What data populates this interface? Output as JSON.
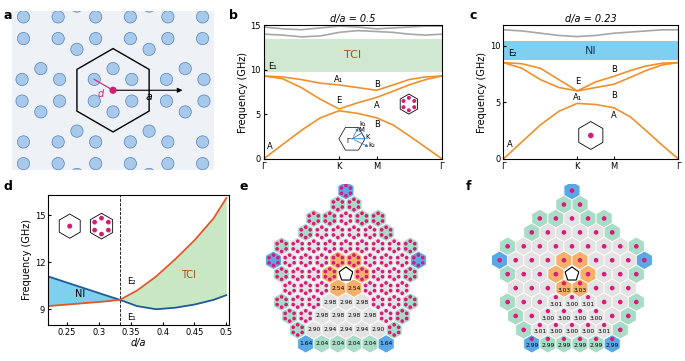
{
  "chart_data": [
    {
      "type": "line",
      "panel": "b",
      "title": "d/a = 0.5",
      "ylabel": "Frequency (GHz)",
      "xlim": [
        0,
        2.366
      ],
      "xticks": [
        {
          "value": 0,
          "label": "Γ"
        },
        {
          "value": 1,
          "label": "K"
        },
        {
          "value": 1.5,
          "label": "M"
        },
        {
          "value": 2.366,
          "label": "Γ"
        }
      ],
      "ylim": [
        0,
        15
      ],
      "yticks": [
        0,
        5,
        10,
        15
      ],
      "x": [
        0,
        0.25,
        0.5,
        0.75,
        1,
        1.25,
        1.5,
        1.72,
        1.93,
        2.15,
        2.366
      ],
      "series": [
        {
          "color": "#f0902a",
          "values": [
            0,
            1.6,
            3.2,
            4.6,
            5.4,
            5.1,
            4.6,
            3.8,
            2.6,
            1.3,
            0
          ]
        },
        {
          "color": "#f0902a",
          "values": [
            9.3,
            9.0,
            8.0,
            6.7,
            5.6,
            6.3,
            6.9,
            7.6,
            8.3,
            8.9,
            9.3
          ]
        },
        {
          "color": "#f0902a",
          "values": [
            9.3,
            9.2,
            8.9,
            8.5,
            8.3,
            8.0,
            7.7,
            8.3,
            8.9,
            9.2,
            9.3
          ]
        },
        {
          "color": "#a6a6a6",
          "values": [
            14.0,
            13.9,
            13.7,
            13.8,
            14.2,
            14.4,
            14.3,
            14.2,
            14.0,
            13.9,
            14.0
          ]
        },
        {
          "color": "#a6a6a6",
          "values": [
            14.8,
            14.6,
            14.5,
            14.7,
            14.9,
            14.8,
            14.6,
            14.7,
            14.8,
            14.9,
            14.9
          ]
        }
      ],
      "band_gap": {
        "label": "TCI",
        "range": [
          9.8,
          13.5
        ],
        "color": "#cfe8cf"
      },
      "annotations": [
        {
          "text": "A",
          "x": 0.08,
          "y": 1.4
        },
        {
          "text": "E",
          "x": 1.0,
          "y": 6.5
        },
        {
          "text": "E₁",
          "x": 0.12,
          "y": 10.4
        },
        {
          "text": "A₁",
          "x": 1.0,
          "y": 8.9
        },
        {
          "text": "B",
          "x": 1.5,
          "y": 8.4
        },
        {
          "text": "A",
          "x": 1.5,
          "y": 6.0
        },
        {
          "text": "B",
          "x": 1.5,
          "y": 3.9
        }
      ],
      "inset_labels": [
        "Γ",
        "K",
        "M",
        "k₁",
        "k₂"
      ]
    },
    {
      "type": "line",
      "panel": "c",
      "title": "d/a = 0.23",
      "ylabel": "Frequency (GHz)",
      "xlim": [
        0,
        2.366
      ],
      "xticks": [
        {
          "value": 0,
          "label": "Γ"
        },
        {
          "value": 1,
          "label": "K"
        },
        {
          "value": 1.5,
          "label": "M"
        },
        {
          "value": 2.366,
          "label": "Γ"
        }
      ],
      "ylim": [
        0,
        11.8
      ],
      "yticks": [
        0,
        5,
        10
      ],
      "x": [
        0,
        0.25,
        0.5,
        0.75,
        1,
        1.25,
        1.5,
        1.72,
        1.93,
        2.15,
        2.366
      ],
      "series": [
        {
          "color": "#f0902a",
          "values": [
            0,
            1.5,
            3.0,
            4.2,
            4.9,
            4.8,
            4.5,
            3.7,
            2.5,
            1.2,
            0
          ]
        },
        {
          "color": "#f0902a",
          "values": [
            8.5,
            8.0,
            7.0,
            6.3,
            6.0,
            6.3,
            6.6,
            7.2,
            7.8,
            8.3,
            8.5
          ]
        },
        {
          "color": "#f0902a",
          "values": [
            8.5,
            8.4,
            8.0,
            7.0,
            6.0,
            6.8,
            7.3,
            7.8,
            8.2,
            8.45,
            8.5
          ]
        },
        {
          "color": "#a6a6a6",
          "values": [
            11.4,
            11.3,
            11.1,
            10.9,
            10.8,
            10.9,
            11.1,
            11.2,
            11.3,
            11.4,
            11.4
          ]
        }
      ],
      "band_gap": {
        "label": "NI",
        "range": [
          8.7,
          10.4
        ],
        "color": "#7fd0f0"
      },
      "annotations": [
        {
          "text": "A",
          "x": 0.08,
          "y": 1.3
        },
        {
          "text": "E₂",
          "x": 0.12,
          "y": 9.3
        },
        {
          "text": "A₁",
          "x": 1.0,
          "y": 5.45
        },
        {
          "text": "E",
          "x": 1.0,
          "y": 6.8
        },
        {
          "text": "B",
          "x": 1.5,
          "y": 7.9
        },
        {
          "text": "B",
          "x": 1.5,
          "y": 5.6
        },
        {
          "text": "A",
          "x": 1.5,
          "y": 3.8
        }
      ]
    },
    {
      "type": "line",
      "panel": "d",
      "xlabel": "d/a",
      "ylabel": "Frequency (GHz)",
      "xlim": [
        0.22,
        0.505
      ],
      "xticks": [
        0.25,
        0.3,
        0.35,
        0.4,
        0.45,
        0.5
      ],
      "ylim": [
        8.0,
        16.3
      ],
      "yticks": [
        9,
        12,
        15
      ],
      "x": [
        0.22,
        0.25,
        0.28,
        0.31,
        0.333,
        0.36,
        0.39,
        0.42,
        0.45,
        0.48,
        0.5
      ],
      "series": [
        {
          "color": "#1d5a96",
          "values": [
            11.1,
            10.7,
            10.3,
            9.9,
            9.6,
            9.2,
            9.0,
            9.1,
            9.3,
            9.6,
            9.9
          ]
        },
        {
          "color": "#e2572b",
          "values": [
            9.2,
            9.3,
            9.4,
            9.5,
            9.6,
            10.2,
            11.1,
            12.2,
            13.4,
            14.8,
            16.1
          ]
        }
      ],
      "transition": 0.333,
      "phases": [
        {
          "label": "NI",
          "color": "#7fd0f0",
          "text_x": 0.27,
          "text_y": 9.95
        },
        {
          "label": "TCI",
          "color": "#c8e8c4",
          "text_x": 0.44,
          "text_y": 11.2
        }
      ],
      "annotations": [
        {
          "text": "E₂",
          "x": 0.345,
          "y": 10.8
        },
        {
          "text": "E₁",
          "x": 0.345,
          "y": 8.5
        }
      ]
    }
  ],
  "diagrams": {
    "a": {
      "panel": "a",
      "labels": [
        "d",
        "a"
      ]
    },
    "e": {
      "panel": "e",
      "rows": [
        [
          "2.54",
          "2.54"
        ],
        [
          "2.98",
          "2.96",
          "2.98"
        ],
        [
          "2.98",
          "2.98",
          "2.98",
          "2.98"
        ],
        [
          "2.90",
          "2.94",
          "2.94",
          "2.94",
          "2.90"
        ],
        [
          "1.64",
          "2.04",
          "2.04",
          "2.04",
          "2.04",
          "1.64"
        ]
      ]
    },
    "f": {
      "panel": "f",
      "rows": [
        [
          "3.03",
          "3.03"
        ],
        [
          "3.01",
          "3.00",
          "3.01"
        ],
        [
          "3.00",
          "3.00",
          "3.00",
          "3.00"
        ],
        [
          "3.01",
          "3.00",
          "3.00",
          "3.00",
          "3.01"
        ],
        [
          "2.99",
          "2.99",
          "2.99",
          "2.99",
          "2.99",
          "2.99"
        ]
      ]
    }
  }
}
